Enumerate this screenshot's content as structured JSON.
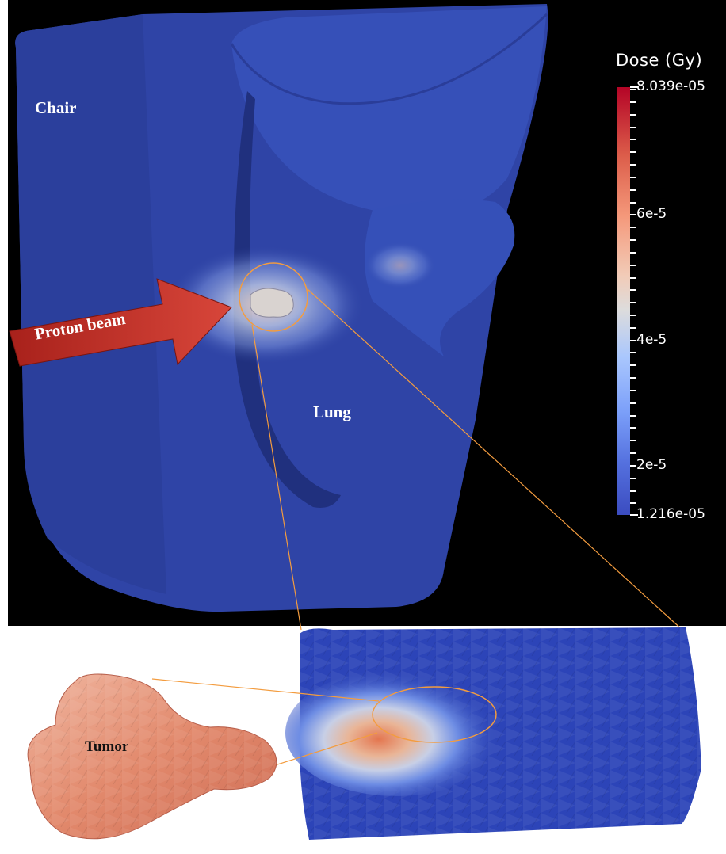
{
  "labels": {
    "chair": "Chair",
    "lung": "Lung",
    "beam": "Proton beam",
    "tumor": "Tumor"
  },
  "colorbar": {
    "title": "Dose (Gy)",
    "max_label": "8.039e-05",
    "min_label": "1.216e-05",
    "ticks": [
      "6e-5",
      "4e-5",
      "2e-5"
    ],
    "max_value": 8.039e-05,
    "min_value": 1.216e-05,
    "tick_values": [
      6e-05,
      4e-05,
      2e-05
    ],
    "colormap": [
      "#3b4cc0",
      "#dddcdc",
      "#b40426"
    ]
  },
  "colors": {
    "background": "#000000",
    "phantom": "#2f45a6",
    "arrow": "#c0392b",
    "leader_line": "#f39c3f"
  }
}
